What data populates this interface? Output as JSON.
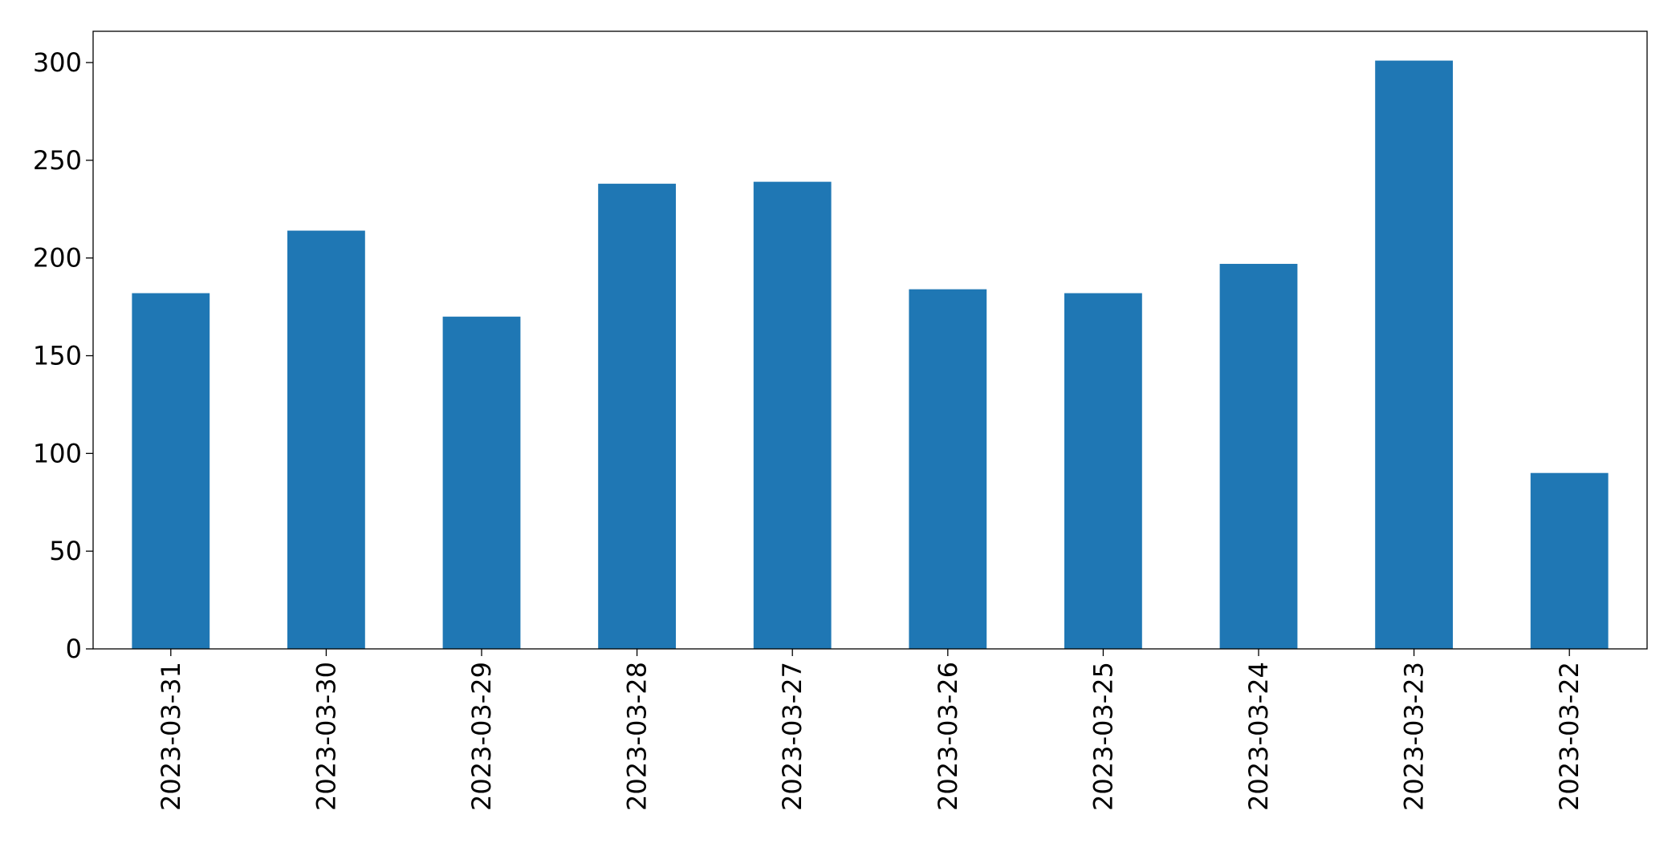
{
  "chart_data": {
    "type": "bar",
    "categories": [
      "2023-03-31",
      "2023-03-30",
      "2023-03-29",
      "2023-03-28",
      "2023-03-27",
      "2023-03-26",
      "2023-03-25",
      "2023-03-24",
      "2023-03-23",
      "2023-03-22"
    ],
    "values": [
      182,
      214,
      170,
      238,
      239,
      184,
      182,
      197,
      301,
      90
    ],
    "color": "#1f77b4",
    "ylim": [
      0,
      316
    ],
    "yticks": [
      0,
      50,
      100,
      150,
      200,
      250,
      300
    ],
    "grid": false
  }
}
